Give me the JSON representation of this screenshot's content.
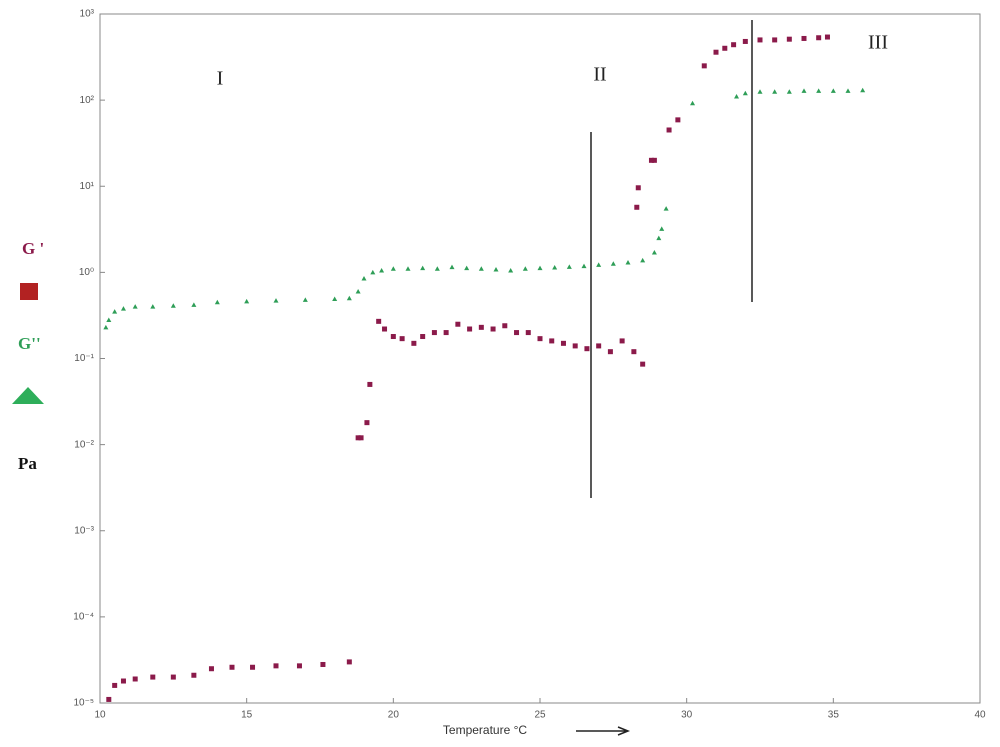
{
  "chart_data": {
    "type": "scatter",
    "x_label": "Temperature °C",
    "y_label": "Pa",
    "ylog": true,
    "xlim": [
      10,
      40
    ],
    "xticks": [
      10,
      15,
      20,
      25,
      30,
      35,
      40
    ],
    "ylim": [
      1e-05,
      1000
    ],
    "yticks": [
      {
        "value": 1e-05,
        "label": "10⁻⁵"
      },
      {
        "value": 0.0001,
        "label": "10⁻⁴"
      },
      {
        "value": 0.001,
        "label": "10⁻³"
      },
      {
        "value": 0.01,
        "label": "10⁻²"
      },
      {
        "value": 0.1,
        "label": "10⁻¹"
      },
      {
        "value": 1,
        "label": "10⁰"
      },
      {
        "value": 10,
        "label": "10¹"
      },
      {
        "value": 100,
        "label": "10²"
      },
      {
        "value": 1000,
        "label": "10³"
      }
    ],
    "annotations": [
      "I",
      "II",
      "III"
    ],
    "series": [
      {
        "name": "G '",
        "color": "#8b1a4a",
        "marker": "square",
        "x": [
          10.3,
          10.5,
          10.8,
          11.2,
          11.8,
          12.5,
          13.2,
          13.8,
          14.5,
          15.2,
          16,
          16.8,
          17.6,
          18.5,
          18.8,
          18.9,
          19.1,
          19.2,
          19.5,
          19.7,
          20,
          20.3,
          20.7,
          21,
          21.4,
          21.8,
          22.2,
          22.6,
          23,
          23.4,
          23.8,
          24.2,
          24.6,
          25,
          25.4,
          25.8,
          26.2,
          26.6,
          27,
          27.4,
          27.8,
          28.2,
          28.5,
          28.3,
          28.35,
          28.8,
          28.9,
          29.4,
          29.7,
          30.6,
          31,
          31.3,
          31.6,
          32,
          32.5,
          33,
          33.5,
          34,
          34.5,
          34.8
        ],
        "values": [
          1.1e-05,
          1.6e-05,
          1.8e-05,
          1.9e-05,
          2e-05,
          2e-05,
          2.1e-05,
          2.5e-05,
          2.6e-05,
          2.6e-05,
          2.7e-05,
          2.7e-05,
          2.8e-05,
          3e-05,
          0.012,
          0.012,
          0.018,
          0.05,
          0.27,
          0.22,
          0.18,
          0.17,
          0.15,
          0.18,
          0.2,
          0.2,
          0.25,
          0.22,
          0.23,
          0.22,
          0.24,
          0.2,
          0.2,
          0.17,
          0.16,
          0.15,
          0.14,
          0.13,
          0.14,
          0.12,
          0.16,
          0.12,
          0.086,
          5.7,
          9.6,
          20,
          20,
          45,
          59,
          250,
          360,
          400,
          440,
          480,
          500,
          500,
          510,
          520,
          530,
          540
        ]
      },
      {
        "name": "G''",
        "color": "#2e9e57",
        "marker": "triangle",
        "x": [
          10.2,
          10.3,
          10.5,
          10.8,
          11.2,
          11.8,
          12.5,
          13.2,
          14,
          15,
          16,
          17,
          18,
          18.5,
          18.8,
          19,
          19.3,
          19.6,
          20,
          20.5,
          21,
          21.5,
          22,
          22.5,
          23,
          23.5,
          24,
          24.5,
          25,
          25.5,
          26,
          26.5,
          27,
          27.5,
          28,
          28.5,
          28.9,
          29.05,
          29.15,
          29.3,
          30.2,
          31.7,
          32,
          32.5,
          33,
          33.5,
          34,
          34.5,
          35,
          35.5,
          36
        ],
        "values": [
          0.23,
          0.28,
          0.35,
          0.38,
          0.4,
          0.4,
          0.41,
          0.42,
          0.45,
          0.46,
          0.47,
          0.48,
          0.49,
          0.5,
          0.6,
          0.85,
          1.0,
          1.05,
          1.1,
          1.1,
          1.12,
          1.1,
          1.15,
          1.12,
          1.1,
          1.08,
          1.05,
          1.1,
          1.12,
          1.14,
          1.16,
          1.18,
          1.22,
          1.26,
          1.3,
          1.38,
          1.7,
          2.5,
          3.2,
          5.5,
          92,
          110,
          120,
          125,
          125,
          125,
          128,
          128,
          128,
          128,
          130
        ]
      }
    ]
  }
}
